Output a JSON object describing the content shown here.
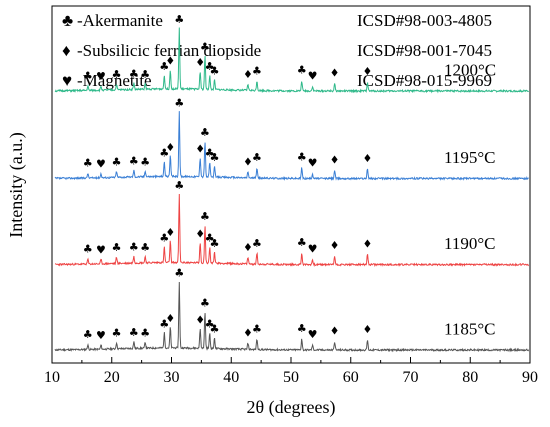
{
  "chart_data": {
    "type": "line",
    "title": "",
    "xlabel": "2θ (degrees)",
    "ylabel": "Intensity (a.u.)",
    "xlim": [
      10,
      90
    ],
    "xticks": [
      10,
      20,
      30,
      40,
      50,
      60,
      70,
      80,
      90
    ],
    "y_tick_labels": false,
    "grid": false,
    "legend_position": "top",
    "phase_legend": [
      {
        "symbol": "♣",
        "symbol_name": "club",
        "label": "-Akermanite",
        "reference": "ICSD#98-003-4805"
      },
      {
        "symbol": "♦",
        "symbol_name": "diamond",
        "label": "-Subsilicic ferrian diopside",
        "reference": "ICSD#98-001-7045"
      },
      {
        "symbol": "♥",
        "symbol_name": "heart",
        "label": "-Magnetite",
        "reference": "ICSD#98-015-9969"
      }
    ],
    "peaks": [
      {
        "two_theta": 16.0,
        "symbol": "♣",
        "height": 0.07
      },
      {
        "two_theta": 18.2,
        "symbol": "♥",
        "height": 0.06
      },
      {
        "two_theta": 20.8,
        "symbol": "♣",
        "height": 0.09
      },
      {
        "two_theta": 23.7,
        "symbol": "♣",
        "height": 0.1
      },
      {
        "two_theta": 25.6,
        "symbol": "♣",
        "height": 0.09
      },
      {
        "two_theta": 28.8,
        "symbol": "♣",
        "height": 0.22
      },
      {
        "two_theta": 29.8,
        "symbol": "♦",
        "height": 0.3
      },
      {
        "two_theta": 31.3,
        "symbol": "♣",
        "height": 0.95
      },
      {
        "two_theta": 34.8,
        "symbol": "♦",
        "height": 0.28
      },
      {
        "two_theta": 35.6,
        "symbol": "♣",
        "height": 0.52
      },
      {
        "two_theta": 36.4,
        "symbol": "♣",
        "height": 0.22
      },
      {
        "two_theta": 37.2,
        "symbol": "♣",
        "height": 0.15
      },
      {
        "two_theta": 42.8,
        "symbol": "♦",
        "height": 0.09
      },
      {
        "two_theta": 44.3,
        "symbol": "♣",
        "height": 0.15
      },
      {
        "two_theta": 51.8,
        "symbol": "♣",
        "height": 0.16
      },
      {
        "two_theta": 53.6,
        "symbol": "♥",
        "height": 0.07
      },
      {
        "two_theta": 57.3,
        "symbol": "♦",
        "height": 0.12
      },
      {
        "two_theta": 62.8,
        "symbol": "♦",
        "height": 0.14
      }
    ],
    "series": [
      {
        "name": "1185°C",
        "color": "#555555",
        "offset": 0.0,
        "scale": 1.0,
        "seed": 11
      },
      {
        "name": "1190°C",
        "color": "#ee4444",
        "offset": 1.22,
        "scale": 1.03,
        "seed": 23
      },
      {
        "name": "1195°C",
        "color": "#3a7fd5",
        "offset": 2.45,
        "scale": 0.98,
        "seed": 37
      },
      {
        "name": "1200°C",
        "color": "#2fb98a",
        "offset": 3.7,
        "scale": 0.92,
        "seed": 51
      }
    ]
  }
}
